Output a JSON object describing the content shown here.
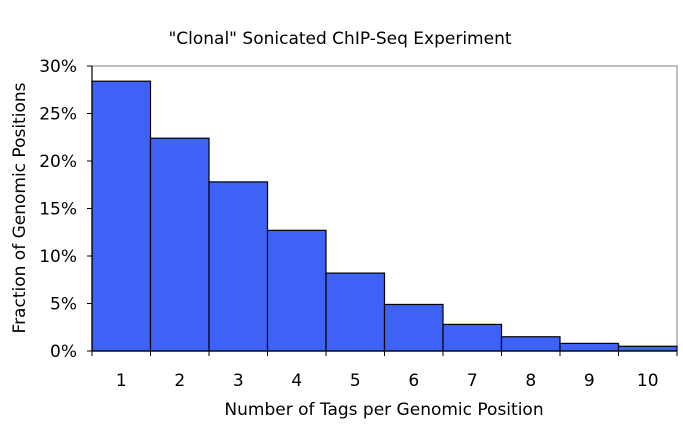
{
  "chart_data": {
    "type": "bar",
    "title": "\"Clonal\" Sonicated ChIP-Seq Experiment",
    "xlabel": "Number of Tags per Genomic Position",
    "ylabel": "Fraction of Genomic Positions",
    "categories": [
      "1",
      "2",
      "3",
      "4",
      "5",
      "6",
      "7",
      "8",
      "9",
      "10"
    ],
    "values": [
      28.4,
      22.4,
      17.8,
      12.7,
      8.2,
      4.9,
      2.8,
      1.5,
      0.8,
      0.5
    ],
    "value_unit": "%",
    "ylim": [
      0,
      30
    ],
    "yticks": [
      0,
      5,
      10,
      15,
      20,
      25,
      30
    ],
    "ytick_labels": [
      "0%",
      "5%",
      "10%",
      "15%",
      "20%",
      "25%",
      "30%"
    ],
    "grid": false,
    "legend": "none",
    "bar_color": "#3F62F6",
    "bar_edge_color": "#000000"
  }
}
